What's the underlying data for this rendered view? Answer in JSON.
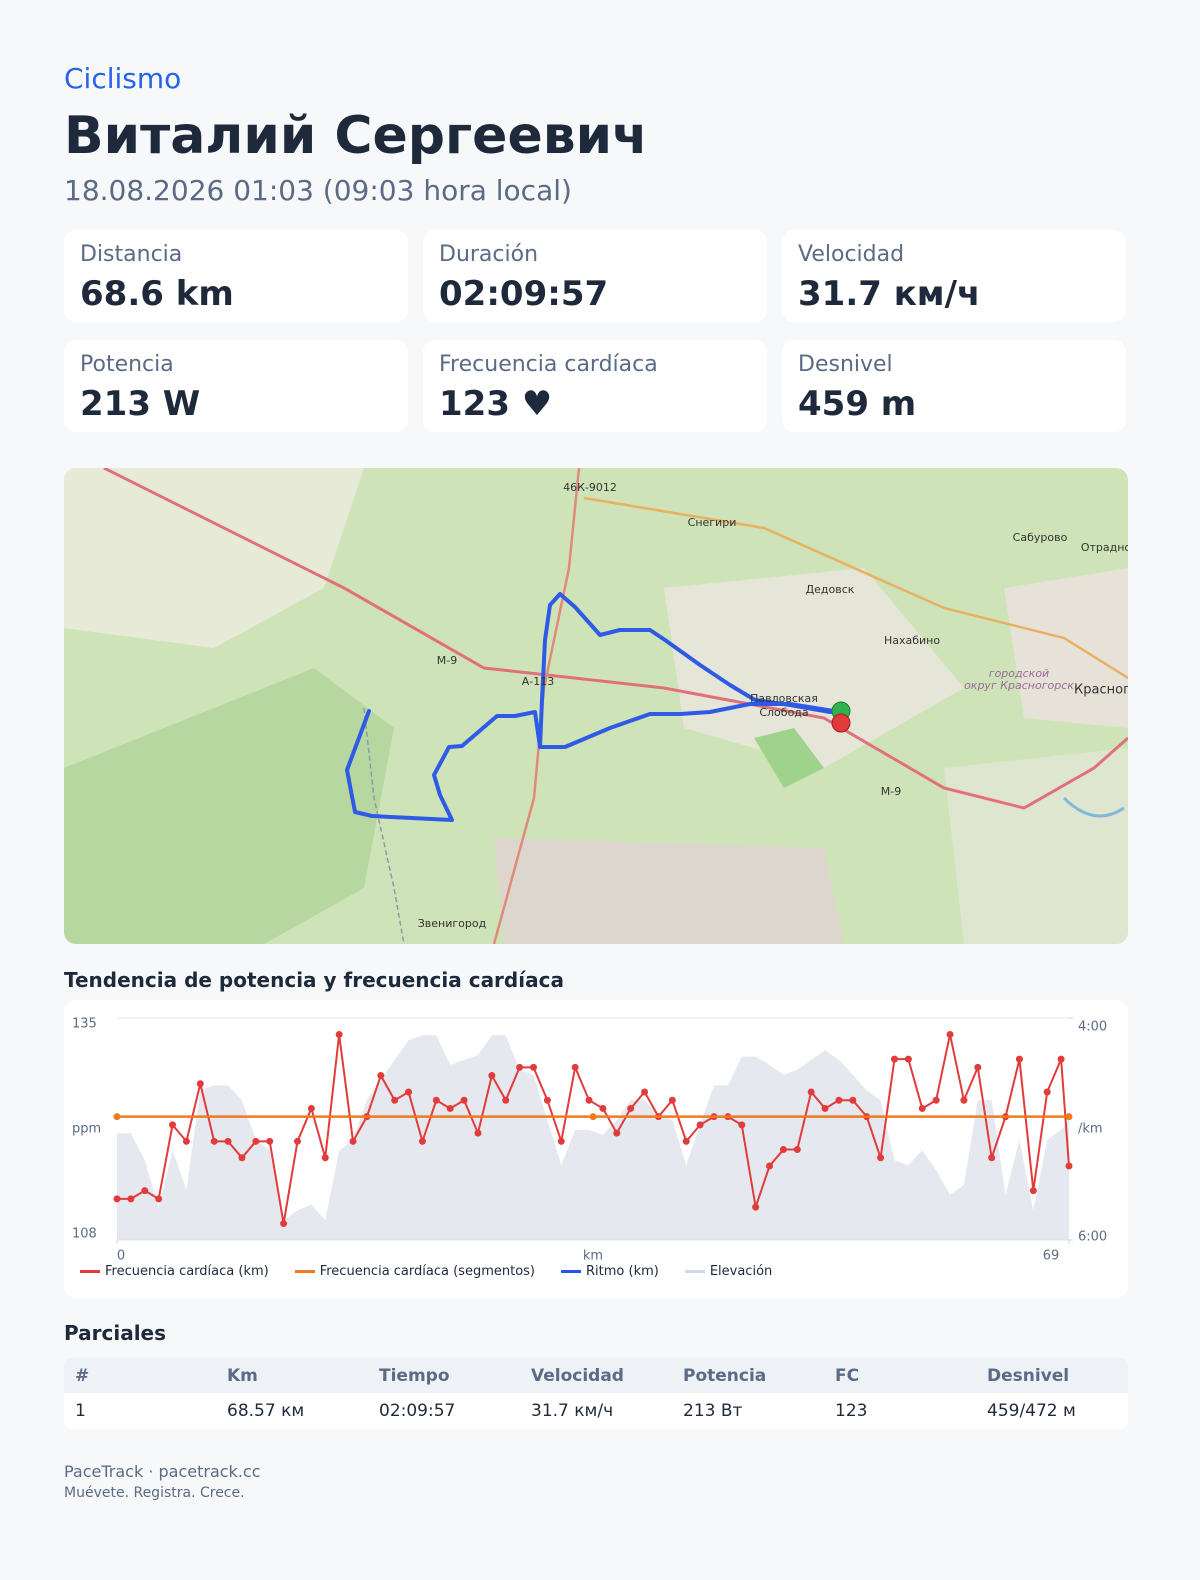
{
  "header": {
    "sport": "Ciclismo",
    "athlete": "Виталий Сергеевич",
    "date": "18.08.2026 01:03 (09:03 hora local)"
  },
  "stats": [
    {
      "label": "Distancia",
      "value": "68.6 km"
    },
    {
      "label": "Duración",
      "value": "02:09:57"
    },
    {
      "label": "Velocidad",
      "value": "31.7 км/ч"
    },
    {
      "label": "Potencia",
      "value": "213 W"
    },
    {
      "label": "Frecuencia cardíaca",
      "value": "123 ♥"
    },
    {
      "label": "Desnivel",
      "value": "459 m"
    }
  ],
  "map": {
    "labels": [
      "46К-9012",
      "Снегири",
      "Сабурово",
      "Отрадно",
      "Дедовск",
      "Нахабино",
      "городской",
      "округ Красногорск",
      "Красног",
      "М-9",
      "А-113",
      "Павловская",
      "Слобода",
      "М-9",
      "Звенигород"
    ]
  },
  "chart_data": {
    "type": "line",
    "title": "Tendencia de potencia y frecuencia cardíaca",
    "x_label": "km",
    "y_label": "ppm",
    "y2_label": "/km",
    "xlim": [
      0,
      68.57
    ],
    "xticks": [
      0,
      {
        "value": 68.57,
        "label": "69"
      }
    ],
    "ylim": [
      108,
      135
    ],
    "yticks": [
      135,
      108
    ],
    "y2lim": [
      360,
      240
    ],
    "y2ticks": [
      {
        "value": 240,
        "label": "4:00"
      },
      {
        "value": 360,
        "label": "6:00"
      }
    ],
    "grid": true,
    "series": [
      {
        "name": "Frecuencia cardíaca (km)",
        "color": "#e23b3b",
        "markers": true,
        "x": [
          0,
          1,
          2,
          3,
          4,
          5,
          6,
          7,
          8,
          9,
          10,
          11,
          12,
          13,
          14,
          15,
          16,
          17,
          18,
          19,
          20,
          21,
          22,
          23,
          24,
          25,
          26,
          27,
          28,
          29,
          30,
          31,
          32,
          33,
          34,
          35,
          36,
          37,
          38,
          39,
          40,
          41,
          42,
          43,
          44,
          45,
          46,
          47,
          48,
          49,
          50,
          51,
          52,
          53,
          54,
          55,
          56,
          57,
          58,
          59,
          60,
          61,
          62,
          63,
          64,
          65,
          66,
          67,
          68,
          68.57
        ],
        "values": [
          113,
          113,
          114,
          113,
          122,
          120,
          127,
          120,
          120,
          118,
          120,
          120,
          110,
          120,
          124,
          118,
          133,
          120,
          123,
          128,
          125,
          126,
          120,
          125,
          124,
          125,
          121,
          128,
          125,
          129,
          129,
          125,
          120,
          129,
          125,
          124,
          121,
          124,
          126,
          123,
          125,
          120,
          122,
          123,
          123,
          122,
          112,
          117,
          119,
          119,
          126,
          124,
          125,
          125,
          123,
          118,
          130,
          130,
          124,
          125,
          133,
          125,
          129,
          118,
          123,
          130,
          114,
          126,
          130,
          117
        ]
      },
      {
        "name": "Frecuencia cardíaca (segmentos)",
        "color": "#f07a1c",
        "markers": true,
        "x": [
          0,
          34.29,
          68.57
        ],
        "values": [
          123,
          123,
          123
        ]
      },
      {
        "name": "Ritmo (km)",
        "color": "#2457e6",
        "axis": "y2",
        "x": [],
        "values": []
      },
      {
        "name": "Elevación",
        "color": "#d3d9e4",
        "area": true,
        "x": [
          0,
          1,
          2,
          3,
          4,
          5,
          6,
          7,
          8,
          9,
          10,
          11,
          12,
          13,
          14,
          15,
          16,
          17,
          18,
          19,
          20,
          21,
          22,
          23,
          24,
          25,
          26,
          27,
          28,
          29,
          30,
          31,
          32,
          33,
          34,
          35,
          36,
          37,
          38,
          39,
          40,
          41,
          42,
          43,
          44,
          45,
          46,
          47,
          48,
          49,
          50,
          51,
          52,
          53,
          54,
          55,
          56,
          57,
          58,
          59,
          60,
          61,
          62,
          63,
          64,
          65,
          66,
          67,
          68,
          68.57
        ],
        "values": [
          121.0,
          121.0,
          117.7,
          111.9,
          118.9,
          114.1,
          126.2,
          126.8,
          126.8,
          125.0,
          120.2,
          118.9,
          110.4,
          111.6,
          112.3,
          110.4,
          118.9,
          120.2,
          125.0,
          127.5,
          129.9,
          132.3,
          132.9,
          132.9,
          129.3,
          129.9,
          130.5,
          132.9,
          132.9,
          128.7,
          128.1,
          122.6,
          117.1,
          121.4,
          121.4,
          120.8,
          122.6,
          125.0,
          125.0,
          123.2,
          122.6,
          117.1,
          122.0,
          126.8,
          126.8,
          130.3,
          130.3,
          129.3,
          128.1,
          128.7,
          129.9,
          131.1,
          129.9,
          128.1,
          126.2,
          125.0,
          117.7,
          117.1,
          118.9,
          116.5,
          113.5,
          114.7,
          125.0,
          125.0,
          113.5,
          120.2,
          111.6,
          120.2,
          121.4,
          122.6
        ]
      }
    ]
  },
  "splits": {
    "title": "Parciales",
    "columns": [
      "#",
      "Km",
      "Tiempo",
      "Velocidad",
      "Potencia",
      "FC",
      "Desnivel"
    ],
    "rows": [
      [
        "1",
        "68.57 км",
        "02:09:57",
        "31.7 км/ч",
        "213 Вт",
        "123",
        "459/472 м"
      ]
    ]
  },
  "footer": {
    "brand": "PaceTrack · pacetrack.cc",
    "tagline": "Muévete. Registra. Crece."
  }
}
